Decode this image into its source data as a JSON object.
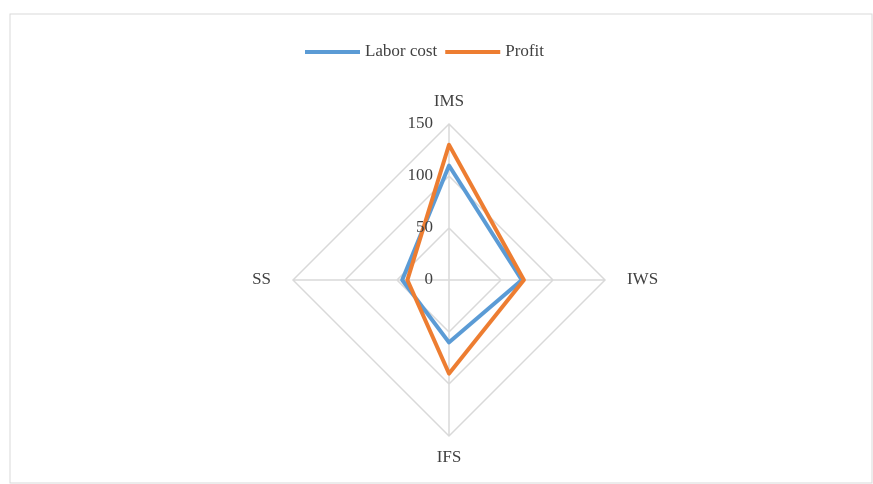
{
  "chart_data": {
    "type": "radar",
    "categories": [
      "IMS",
      "IWS",
      "IFS",
      "SS"
    ],
    "series": [
      {
        "name": "Labor cost",
        "color": "#5b9bd5",
        "values": [
          110,
          70,
          60,
          45
        ]
      },
      {
        "name": "Profit",
        "color": "#ed7d31",
        "values": [
          130,
          72,
          90,
          40
        ]
      }
    ],
    "ylim": [
      0,
      150
    ],
    "yticks": [
      0,
      50,
      100,
      150
    ],
    "grid": true,
    "legend": "top"
  }
}
